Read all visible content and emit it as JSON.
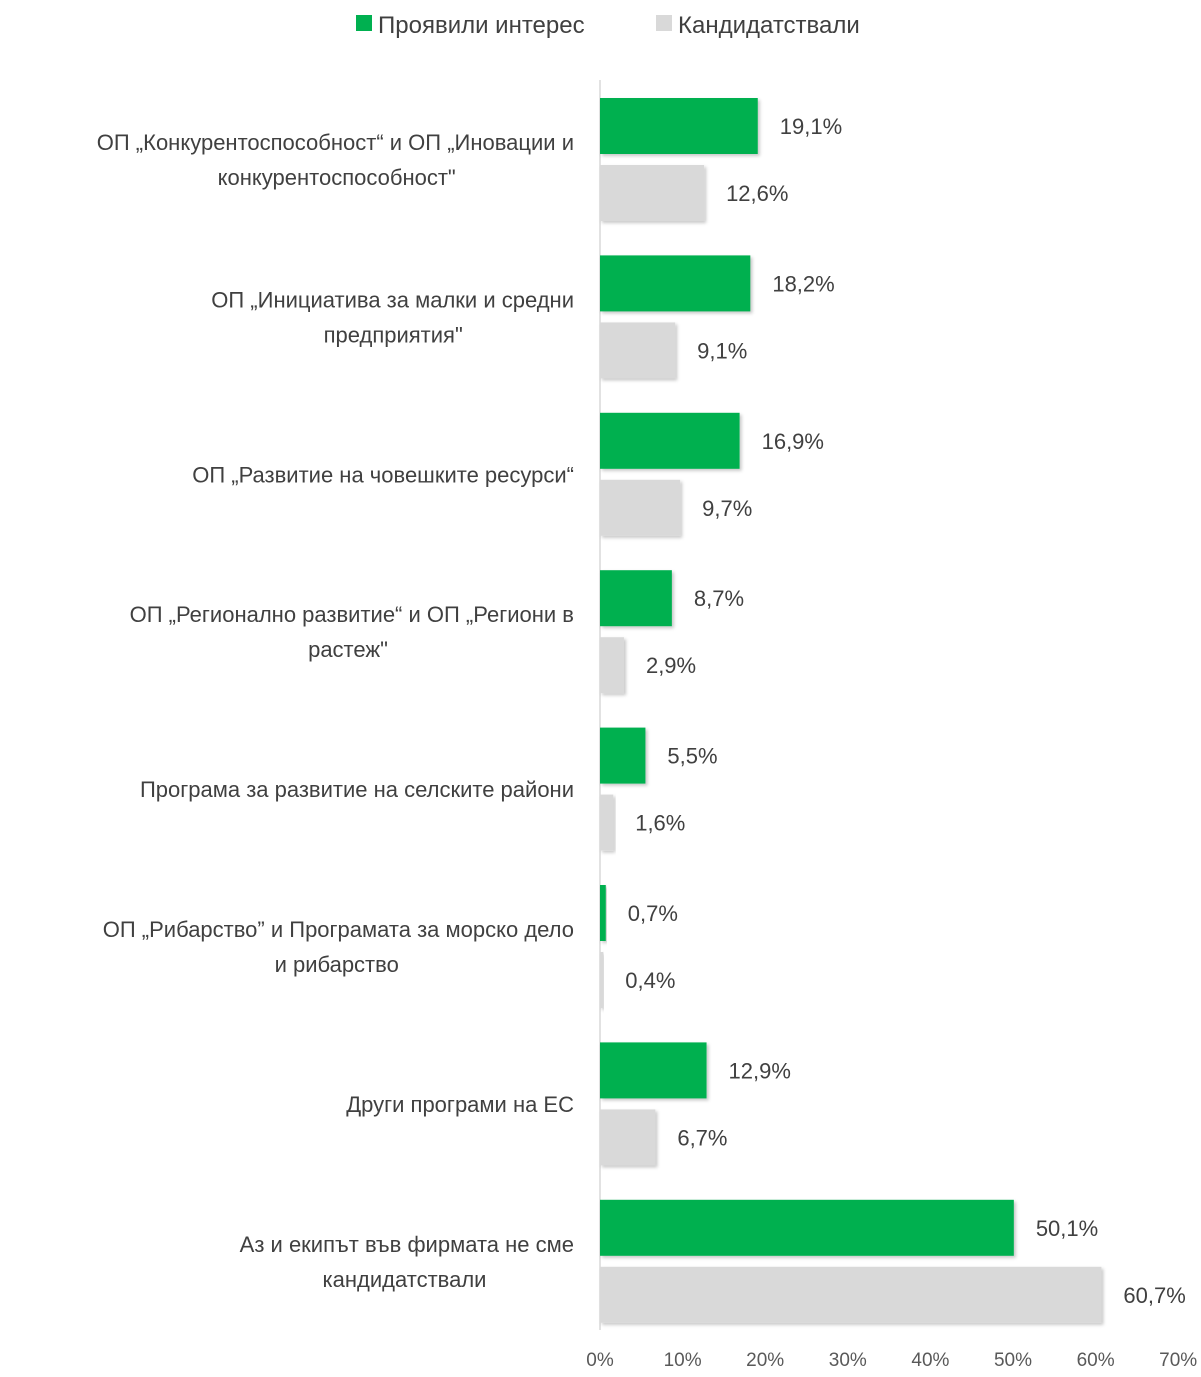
{
  "chart_data": {
    "type": "bar",
    "orientation": "horizontal",
    "categories": [
      [
        "ОП „Конкурентоспособност“ и ОП „Иновации и",
        "конкурентоспособност\""
      ],
      [
        "ОП „Инициатива за малки и средни",
        "предприятия\""
      ],
      [
        "ОП „Развитие на човешките ресурси“"
      ],
      [
        "ОП „Регионално развитие“ и ОП „Региони в",
        "растеж\""
      ],
      [
        "Програма за развитие на селските райони"
      ],
      [
        "ОП „Рибарство” и Програмата за морско дело",
        "и рибарство"
      ],
      [
        "Други програми на ЕС"
      ],
      [
        "Аз и екипът във фирмата не сме",
        "кандидатствали"
      ]
    ],
    "series": [
      {
        "name": "Проявили интерес",
        "color": "#00B050",
        "values": [
          19.1,
          18.2,
          16.9,
          8.7,
          5.5,
          0.7,
          12.9,
          50.1
        ],
        "labels": [
          "19,1%",
          "18,2%",
          "16,9%",
          "8,7%",
          "5,5%",
          "0,7%",
          "12,9%",
          "50,1%"
        ]
      },
      {
        "name": "Кандидатствали",
        "color": "#D9D9D9",
        "values": [
          12.6,
          9.1,
          9.7,
          2.9,
          1.6,
          0.4,
          6.7,
          60.7
        ],
        "labels": [
          "12,6%",
          "9,1%",
          "9,7%",
          "2,9%",
          "1,6%",
          "0,4%",
          "6,7%",
          "60,7%"
        ]
      }
    ],
    "xlim": [
      0,
      70
    ],
    "xticks": [
      0,
      10,
      20,
      30,
      40,
      50,
      60,
      70
    ],
    "xtick_labels": [
      "0%",
      "10%",
      "20%",
      "30%",
      "40%",
      "50%",
      "60%",
      "70%"
    ],
    "legend_position": "top",
    "grid": false
  }
}
